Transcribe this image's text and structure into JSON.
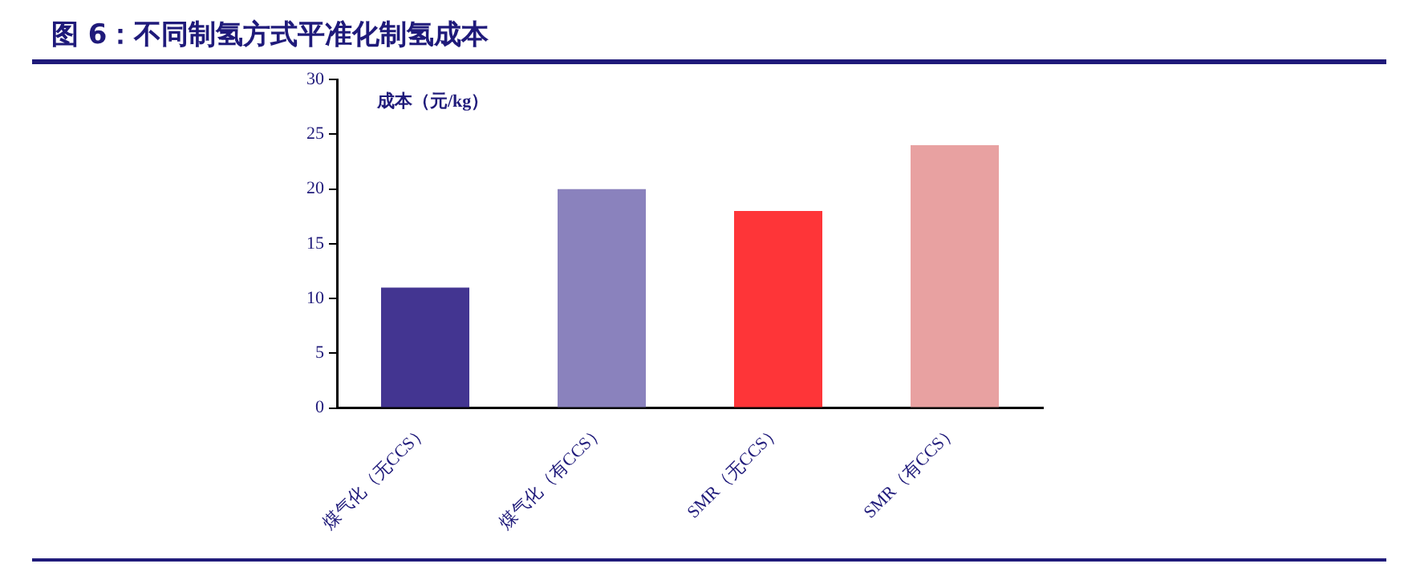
{
  "chart_data": {
    "type": "bar",
    "title": "图 6：不同制氢方式平准化制氢成本",
    "ylabel": "成本（元/kg）",
    "categories": [
      "煤气化（无CCS）",
      "煤气化（有CCS）",
      "SMR（无CCS）",
      "SMR（有CCS）"
    ],
    "values": [
      11,
      20,
      18,
      24
    ],
    "colors": [
      "#433591",
      "#8a82bd",
      "#fe3538",
      "#e8a1a1"
    ],
    "ylim": [
      0,
      30
    ],
    "yticks": [
      0,
      5,
      10,
      15,
      20,
      25,
      30
    ],
    "grid": false,
    "legend": false
  }
}
